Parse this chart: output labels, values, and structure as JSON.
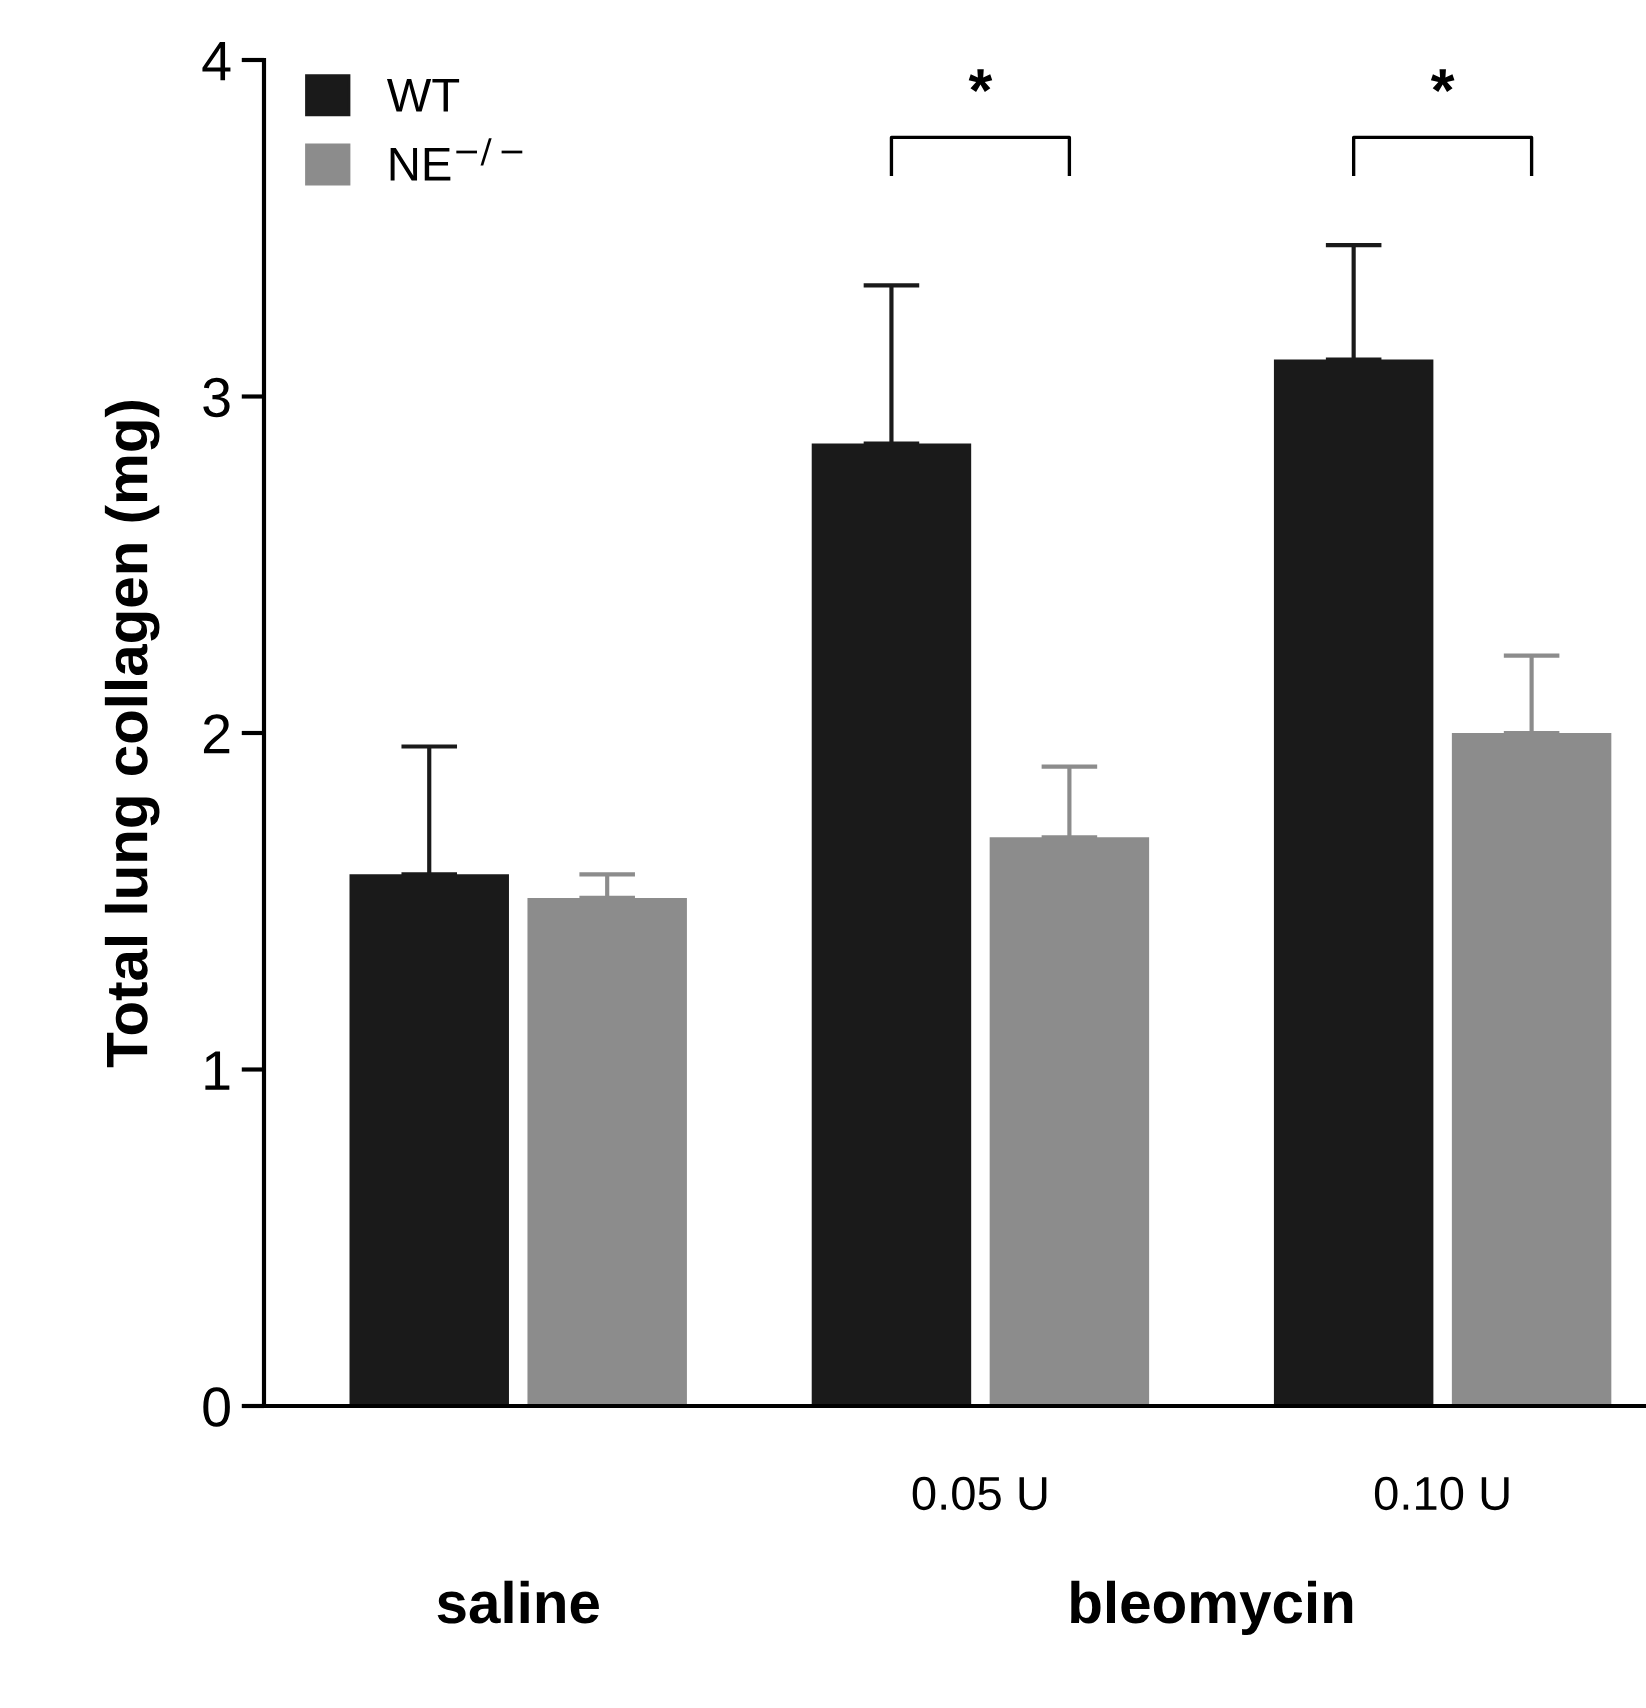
{
  "chart_data": {
    "type": "bar",
    "ylabel": "Total lung collagen (mg)",
    "categories": [
      null,
      "0.05 U",
      "0.10 U"
    ],
    "series": [
      {
        "name": "WT",
        "color": "#1a1a1a",
        "values": [
          1.58,
          2.86,
          3.11
        ],
        "errors": [
          [
            1.58,
            1.96
          ],
          [
            2.86,
            3.33
          ],
          [
            3.11,
            3.45
          ]
        ]
      },
      {
        "name": "NE$^{−/−}$",
        "color": "#8c8c8c",
        "values": [
          1.51,
          1.69,
          2.0
        ],
        "errors": [
          [
            1.51,
            1.58
          ],
          [
            1.69,
            1.9
          ],
          [
            2.0,
            2.23
          ]
        ]
      }
    ],
    "ylim": [
      0,
      4
    ],
    "yticks": [
      0,
      1,
      2,
      3,
      4
    ],
    "grid": false,
    "legend": "top left",
    "annotations": [
      "*",
      "*",
      "saline",
      "bleomycin"
    ]
  }
}
